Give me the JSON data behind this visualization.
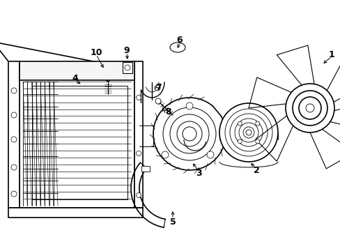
{
  "background_color": "#ffffff",
  "line_color": "#000000",
  "figsize": [
    4.89,
    3.6
  ],
  "dpi": 100,
  "xlim": [
    0,
    489
  ],
  "ylim": [
    0,
    360
  ]
}
